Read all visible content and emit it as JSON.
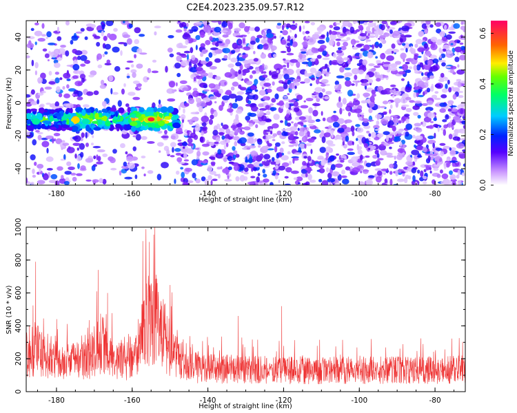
{
  "title": "C2E4.2023.235.09.57.R12",
  "chart_data": [
    {
      "type": "heatmap",
      "xlabel": "Height of straight line (km)",
      "ylabel": "Frequency (Hz)",
      "xlim": [
        -188,
        -72
      ],
      "ylim": [
        -50,
        50
      ],
      "x_ticks": [
        "-180",
        "-160",
        "-140",
        "-120",
        "-100",
        "-80"
      ],
      "y_ticks": [
        "40",
        "20",
        "0",
        "-20",
        "-40"
      ],
      "colorbar": {
        "label": "Normalized spectral amplitude",
        "range": [
          0.0,
          0.65
        ],
        "ticks": [
          "0.0",
          "0.2",
          "0.4",
          "0.6"
        ]
      },
      "features": [
        {
          "kind": "signal-band",
          "x_range": [
            -188,
            -148
          ],
          "frequency_center": -10,
          "frequency_halfwidth": 6,
          "peak_amplitude": 0.62,
          "peak_x": -155
        }
      ]
    },
    {
      "type": "line",
      "xlabel": "Height of straight line (km)",
      "ylabel": "SNR (10 * v/v)",
      "xlim": [
        -188,
        -72
      ],
      "ylim": [
        0,
        1000
      ],
      "x_ticks": [
        "-180",
        "-160",
        "-140",
        "-120",
        "-100",
        "-80"
      ],
      "y_ticks": [
        "0",
        "200",
        "400",
        "600",
        "800",
        "1000"
      ],
      "series": [
        {
          "color": "#ee3333",
          "baseline_x": [
            -188,
            -186,
            -180,
            -172,
            -170,
            -168,
            -166,
            -160,
            -157,
            -155,
            -153,
            -150,
            -148,
            -146,
            -140,
            -120,
            -100,
            -80,
            -72
          ],
          "baseline_y": [
            200,
            260,
            190,
            190,
            260,
            300,
            200,
            180,
            380,
            470,
            420,
            260,
            200,
            150,
            140,
            130,
            130,
            130,
            135
          ],
          "spikes": [
            {
              "x": -154,
              "y": 1000
            },
            {
              "x": -155.5,
              "y": 910
            },
            {
              "x": -185.5,
              "y": 790
            },
            {
              "x": -169,
              "y": 740
            },
            {
              "x": -166.5,
              "y": 600
            },
            {
              "x": -120.5,
              "y": 520
            },
            {
              "x": -132,
              "y": 460
            }
          ]
        }
      ]
    }
  ]
}
